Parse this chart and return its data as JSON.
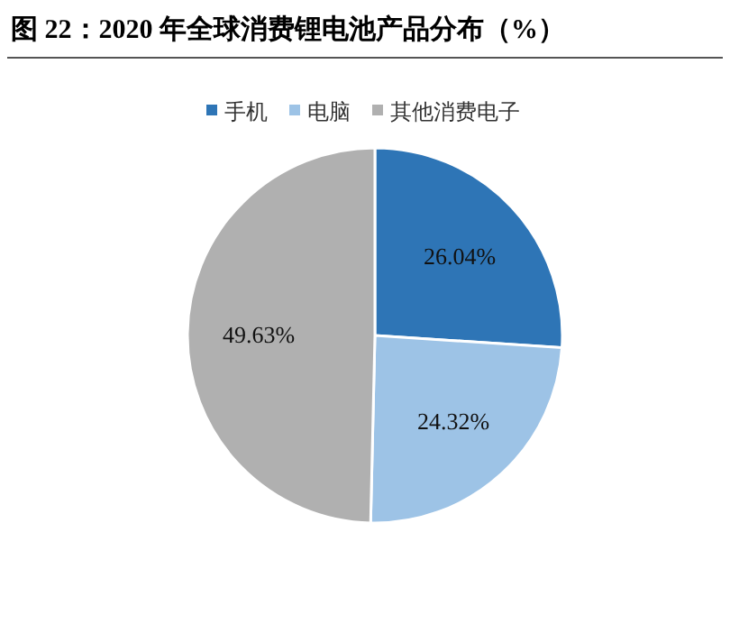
{
  "chart_data": {
    "type": "pie",
    "title": "图 22：2020 年全球消费锂电池产品分布（%）",
    "categories": [
      "手机",
      "电脑",
      "其他消费电子"
    ],
    "values": [
      26.04,
      24.32,
      49.63
    ],
    "colors": [
      "#2e75b6",
      "#9dc3e6",
      "#b0b0b0"
    ],
    "value_labels": [
      "26.04%",
      "24.32%",
      "49.63%"
    ],
    "legend": "top"
  }
}
